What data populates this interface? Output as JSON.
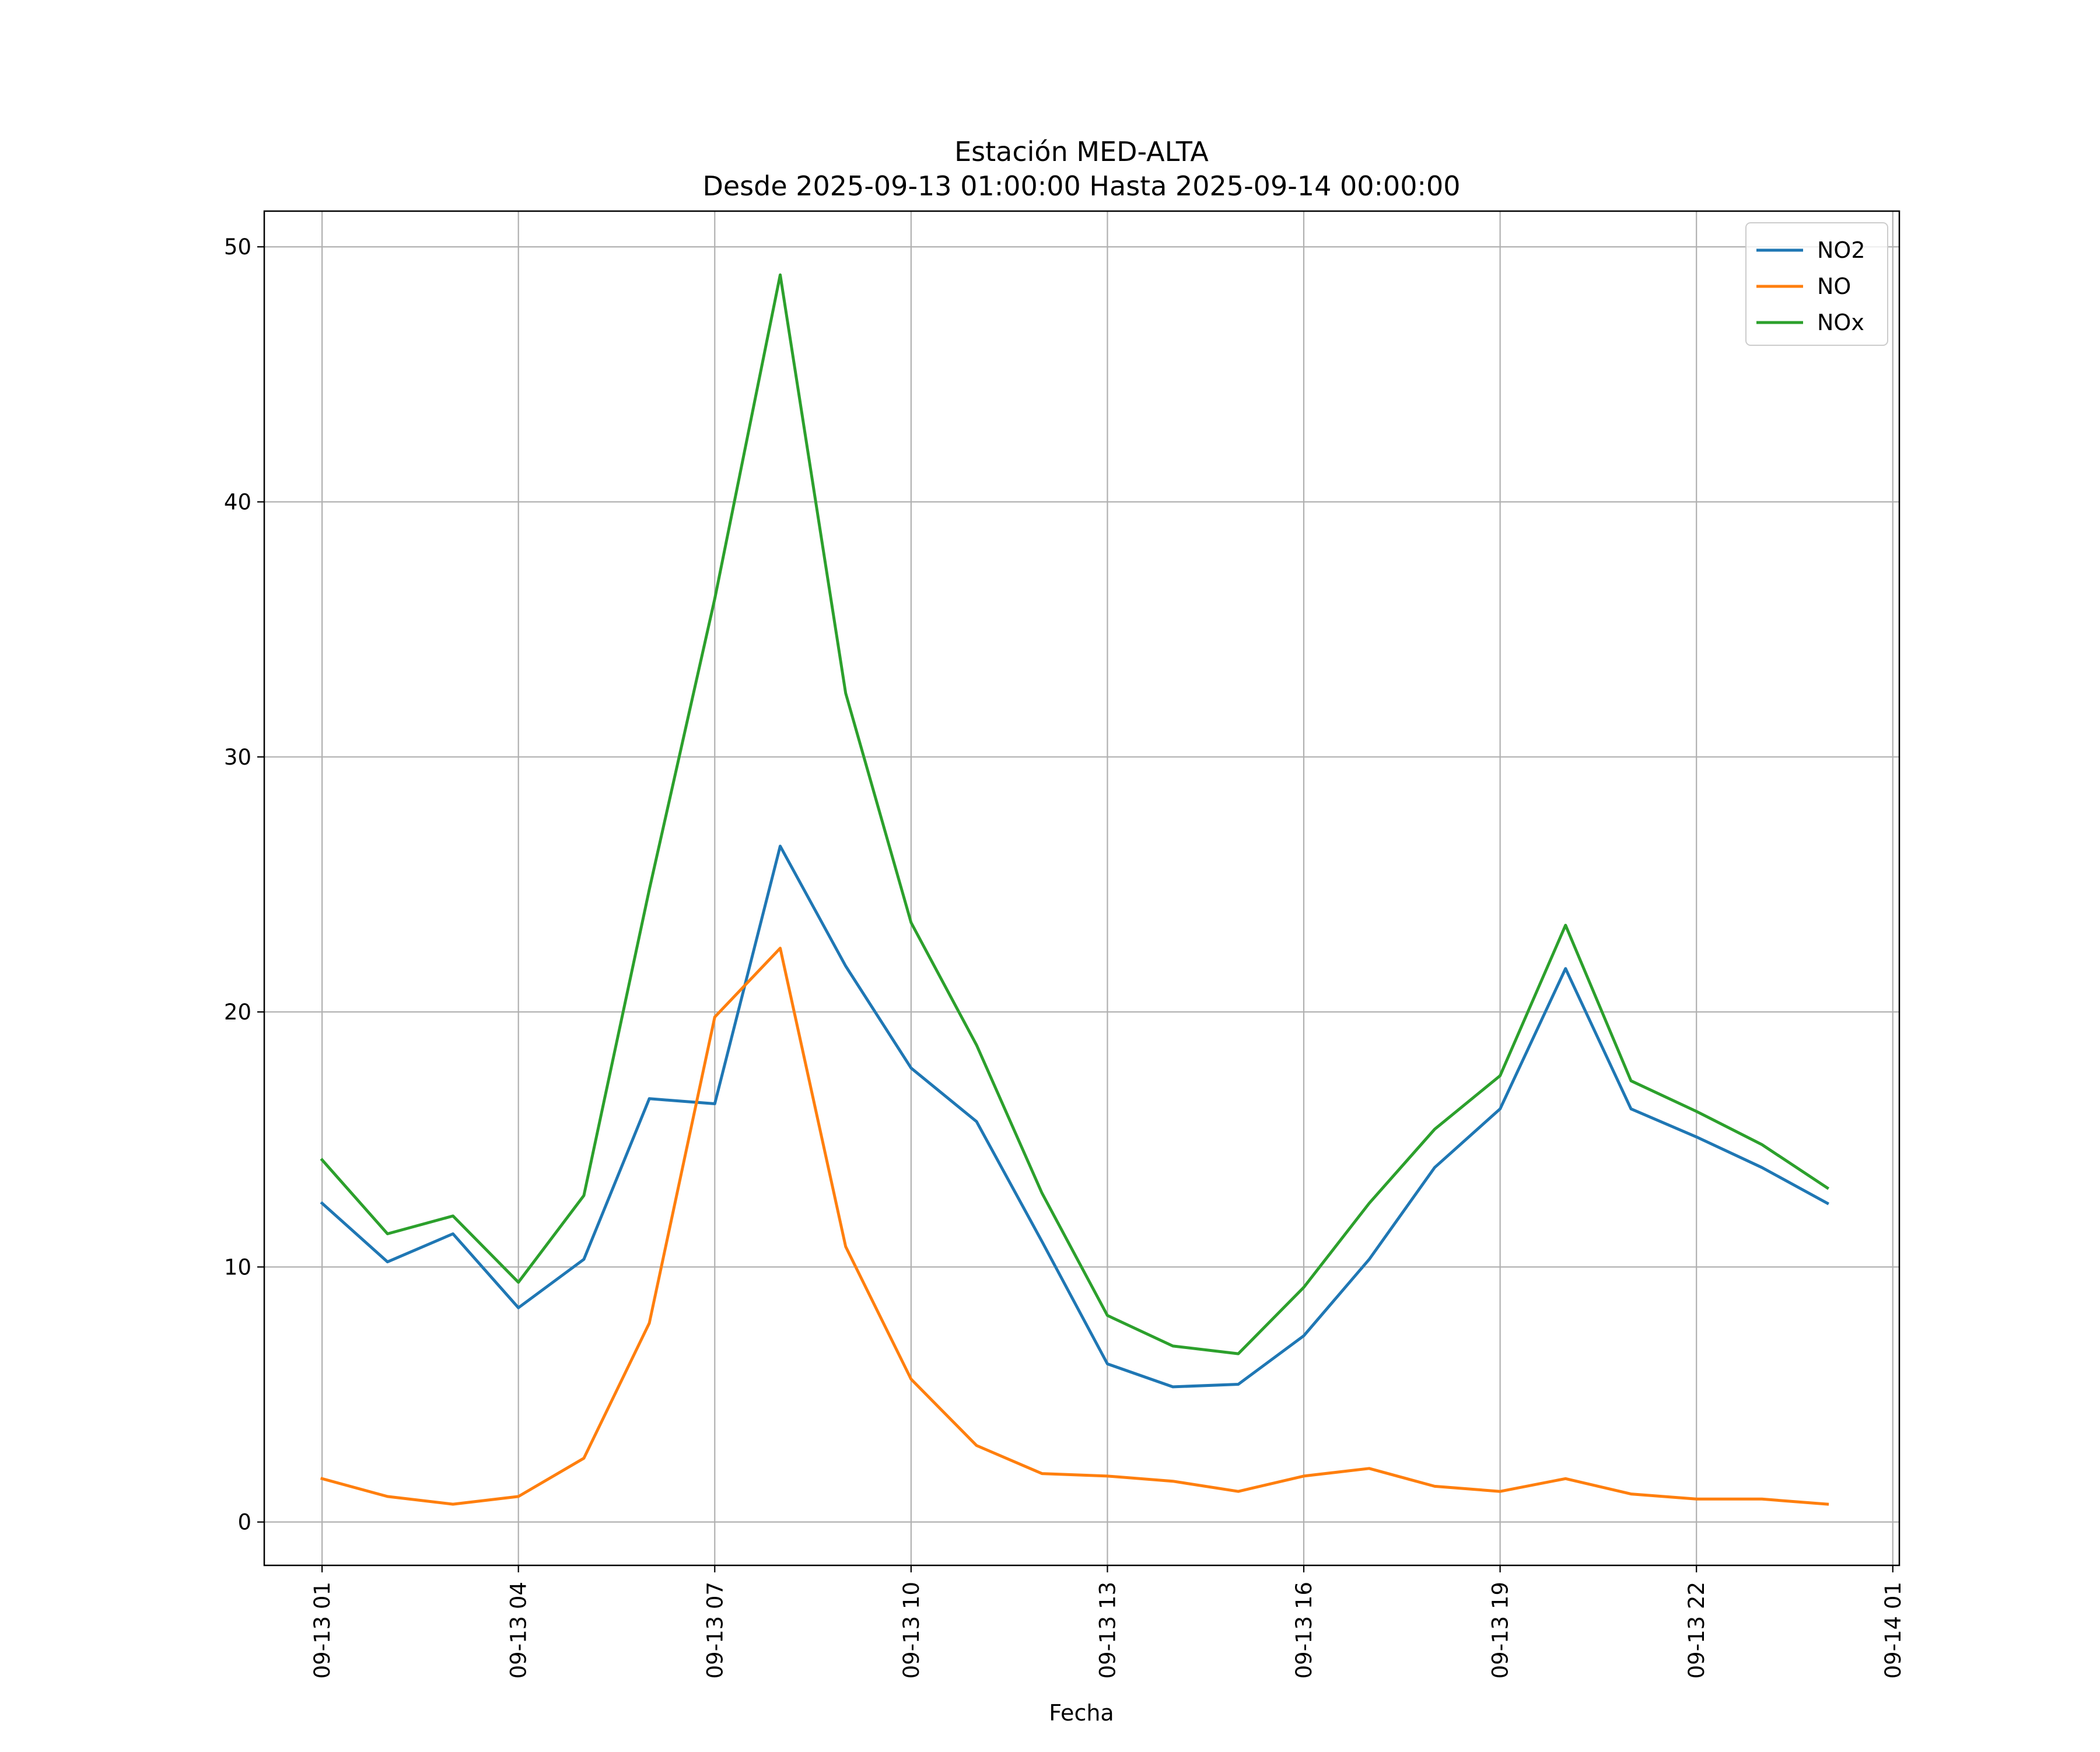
{
  "chart_data": {
    "type": "line",
    "title": "Estación MED-ALTA",
    "subtitle": "Desde 2025-09-13 01:00:00 Hasta 2025-09-14 00:00:00",
    "xlabel": "Fecha",
    "ylabel": "",
    "x": [
      "2025-09-13 01:00",
      "2025-09-13 02:00",
      "2025-09-13 03:00",
      "2025-09-13 04:00",
      "2025-09-13 05:00",
      "2025-09-13 06:00",
      "2025-09-13 07:00",
      "2025-09-13 08:00",
      "2025-09-13 09:00",
      "2025-09-13 10:00",
      "2025-09-13 11:00",
      "2025-09-13 12:00",
      "2025-09-13 13:00",
      "2025-09-13 14:00",
      "2025-09-13 15:00",
      "2025-09-13 16:00",
      "2025-09-13 17:00",
      "2025-09-13 18:00",
      "2025-09-13 19:00",
      "2025-09-13 20:00",
      "2025-09-13 21:00",
      "2025-09-13 22:00",
      "2025-09-13 23:00",
      "2025-09-14 00:00"
    ],
    "x_tick_labels": [
      "09-13 01",
      "09-13 04",
      "09-13 07",
      "09-13 10",
      "09-13 13",
      "09-13 16",
      "09-13 19",
      "09-13 22",
      "09-14 01"
    ],
    "y_ticks": [
      0,
      10,
      20,
      30,
      40,
      50
    ],
    "ylim": [
      -1.7,
      51.4
    ],
    "xlim": [
      "2025-09-13 00:07",
      "2025-09-14 01:06"
    ],
    "grid": true,
    "legend_position": "top-right",
    "series": [
      {
        "name": "NO2",
        "color": "#1f77b4",
        "values": [
          12.5,
          10.2,
          11.3,
          8.4,
          10.3,
          16.6,
          16.4,
          26.5,
          21.8,
          17.8,
          15.7,
          11.0,
          6.2,
          5.3,
          5.4,
          7.3,
          10.3,
          13.9,
          16.2,
          21.7,
          16.2,
          15.1,
          13.9,
          12.5
        ]
      },
      {
        "name": "NO",
        "color": "#ff7f0e",
        "values": [
          1.7,
          1.0,
          0.7,
          1.0,
          2.5,
          7.8,
          19.8,
          22.5,
          10.8,
          5.6,
          3.0,
          1.9,
          1.8,
          1.6,
          1.2,
          1.8,
          2.1,
          1.4,
          1.2,
          1.7,
          1.1,
          0.9,
          0.9,
          0.7
        ]
      },
      {
        "name": "NOx",
        "color": "#2ca02c",
        "values": [
          14.2,
          11.3,
          12.0,
          9.4,
          12.8,
          24.8,
          36.2,
          48.9,
          32.5,
          23.5,
          18.7,
          12.9,
          8.1,
          6.9,
          6.6,
          9.2,
          12.5,
          15.4,
          17.5,
          23.4,
          17.3,
          16.1,
          14.8,
          13.1
        ]
      }
    ]
  }
}
